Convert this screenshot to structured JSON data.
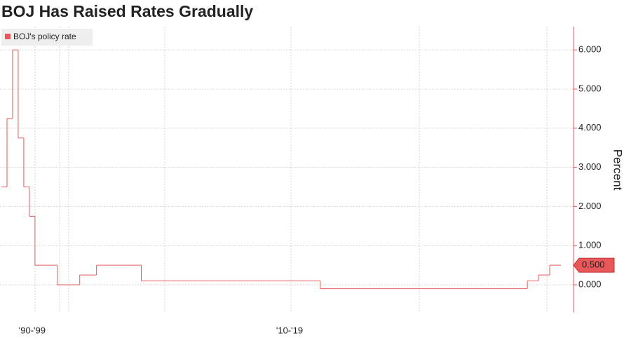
{
  "chart_data": {
    "type": "step",
    "title": "BOJ Has Raised Rates Gradually",
    "y_label": "Percent",
    "categories": [
      null,
      null,
      null,
      null,
      null,
      "'90-'99",
      null,
      null,
      null,
      null,
      null,
      null,
      null,
      null,
      null,
      null,
      null,
      null,
      null,
      null,
      null,
      null,
      null,
      null,
      null,
      null,
      null,
      null,
      null,
      null,
      null,
      null,
      null,
      null,
      null,
      null,
      null,
      null,
      null,
      null,
      null,
      null,
      null,
      null,
      null,
      null,
      null,
      null,
      null,
      null,
      null,
      "'10-'19",
      null,
      null,
      null,
      null,
      null,
      null,
      null,
      null,
      null,
      null,
      null,
      null,
      null,
      null,
      null,
      null,
      null,
      null,
      null,
      null,
      null,
      null,
      null,
      null,
      null,
      null,
      null,
      null,
      null,
      null,
      null,
      null,
      null,
      null,
      null,
      null,
      null,
      null,
      null,
      null,
      null,
      null,
      null,
      null,
      null,
      null,
      null,
      null
    ],
    "series": [
      {
        "name": "BOJ's policy rate",
        "color": "#e8575a",
        "values": [
          2.5,
          4.25,
          6,
          3.75,
          2.5,
          1.75,
          0.5,
          0.5,
          0.5,
          0.5,
          0,
          0,
          0,
          0,
          0.25,
          0.25,
          0.25,
          0.5,
          0.5,
          0.5,
          0.5,
          0.5,
          0.5,
          0.5,
          0.5,
          0.1,
          0.1,
          0.1,
          0.1,
          0.1,
          0.1,
          0.1,
          0.1,
          0.1,
          0.1,
          0.1,
          0.1,
          0.1,
          0.1,
          0.1,
          0.1,
          0.1,
          0.1,
          0.1,
          0.1,
          0.1,
          0.1,
          0.1,
          0.1,
          0.1,
          0.1,
          0.1,
          0.1,
          0.1,
          0.1,
          0.1,
          0.1,
          -0.1,
          -0.1,
          -0.1,
          -0.1,
          -0.1,
          -0.1,
          -0.1,
          -0.1,
          -0.1,
          -0.1,
          -0.1,
          -0.1,
          -0.1,
          -0.1,
          -0.1,
          -0.1,
          -0.1,
          -0.1,
          -0.1,
          -0.1,
          -0.1,
          -0.1,
          -0.1,
          -0.1,
          -0.1,
          -0.1,
          -0.1,
          -0.1,
          -0.1,
          -0.1,
          -0.1,
          -0.1,
          -0.1,
          -0.1,
          -0.1,
          -0.1,
          -0.1,
          0.1,
          0.1,
          0.25,
          0.25,
          0.5,
          0.5
        ],
        "value_labels": [
          null,
          null,
          null,
          null,
          null,
          null,
          null,
          null,
          null,
          null,
          null,
          null,
          null,
          null,
          null,
          null,
          null,
          null,
          null,
          null,
          null,
          null,
          null,
          null,
          null,
          null,
          null,
          null,
          null,
          null,
          null,
          null,
          null,
          null,
          null,
          null,
          null,
          null,
          null,
          null,
          null,
          null,
          null,
          null,
          null,
          null,
          null,
          null,
          null,
          null,
          null,
          null,
          null,
          null,
          null,
          null,
          null,
          null,
          null,
          null,
          null,
          null,
          null,
          null,
          null,
          null,
          null,
          null,
          null,
          null,
          null,
          null,
          null,
          null,
          null,
          null,
          null,
          null,
          null,
          null,
          null,
          null,
          null,
          null,
          null,
          null,
          null,
          null,
          null,
          null,
          null,
          null,
          null,
          null,
          null,
          null,
          null,
          null,
          null,
          "0.500"
        ]
      }
    ],
    "ylim": [
      -0.6,
      6.6
    ],
    "yticks": [
      {
        "value": 0,
        "label": "0.000"
      },
      {
        "value": 1,
        "label": "1.000"
      },
      {
        "value": 2,
        "label": "2.000"
      },
      {
        "value": 3,
        "label": "3.000"
      },
      {
        "value": 4,
        "label": "4.000"
      },
      {
        "value": 5,
        "label": "5.000"
      },
      {
        "value": 6,
        "label": "6.000"
      }
    ],
    "grid": true,
    "legend": "top-left"
  }
}
